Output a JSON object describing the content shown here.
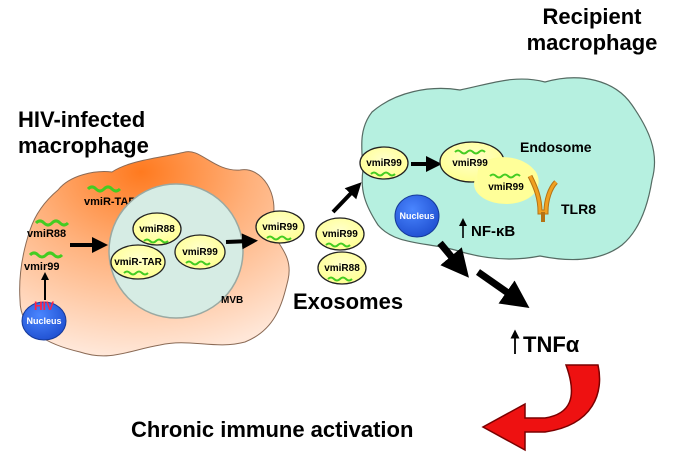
{
  "cells": {
    "infected": {
      "title_line1": "HIV-infected",
      "title_line2": "macrophage",
      "hiv": "HIV",
      "nucleus": "Nucleus",
      "vmir99": "vmir99",
      "vmir88": "vmiR88",
      "vmir_tar": "vmiR-TAR",
      "mvb": "MVB"
    },
    "recipient": {
      "title_line1": "Recipient",
      "title_line2": "macrophage",
      "nucleus": "Nucleus",
      "endosome": "Endosome",
      "tlr8": "TLR8",
      "nfkb": "NF-κB"
    }
  },
  "vesicles": {
    "mvb_vmir88": "vmiR88",
    "mvb_vmir_tar": "vmiR-TAR",
    "mvb_vmir99": "vmiR99",
    "release_vmir99": "vmiR99",
    "exo_vmir99": "vmiR99",
    "exo_vmir88": "vmiR88",
    "entry_vmir99": "vmiR99",
    "endo_vmir99_a": "vmiR99",
    "endo_vmir99_b": "vmiR99"
  },
  "labels": {
    "exosomes": "Exosomes",
    "tnf": "TNFα",
    "outcome": "Chronic immune activation"
  },
  "colors": {
    "infected_cell": "#ff8c3a",
    "recipient_cell": "#b6f0e0",
    "mvb": "#d6ece4",
    "vesicle": "#ffff99",
    "nucleus": "#1f5fe8",
    "mirna": "#44cc22",
    "hiv_text": "#ff2244",
    "tlr8": "#f0a020",
    "outcome_arrow": "#ee1111"
  }
}
